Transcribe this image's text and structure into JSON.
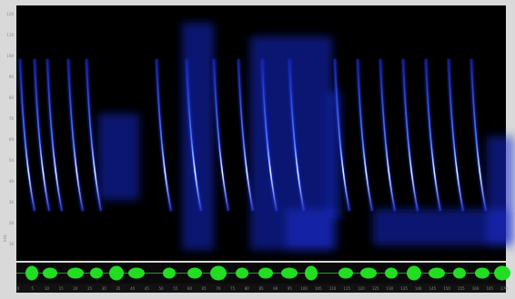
{
  "spectrogram": {
    "y_unit": "kHz",
    "y_labels": [
      "120",
      "110",
      "100",
      "90",
      "80",
      "70",
      "60",
      "50",
      "40",
      "30",
      "20",
      "10"
    ],
    "x_labels": [
      "0",
      "5",
      "10",
      "15",
      "20",
      "25",
      "30",
      "35",
      "40",
      "45",
      "50",
      "55",
      "60",
      "65",
      "70",
      "75",
      "80",
      "85",
      "90",
      "95",
      "100",
      "105",
      "110",
      "115",
      "120",
      "125",
      "130",
      "135",
      "140",
      "145",
      "150",
      "155",
      "160",
      "165",
      "170"
    ]
  }
}
